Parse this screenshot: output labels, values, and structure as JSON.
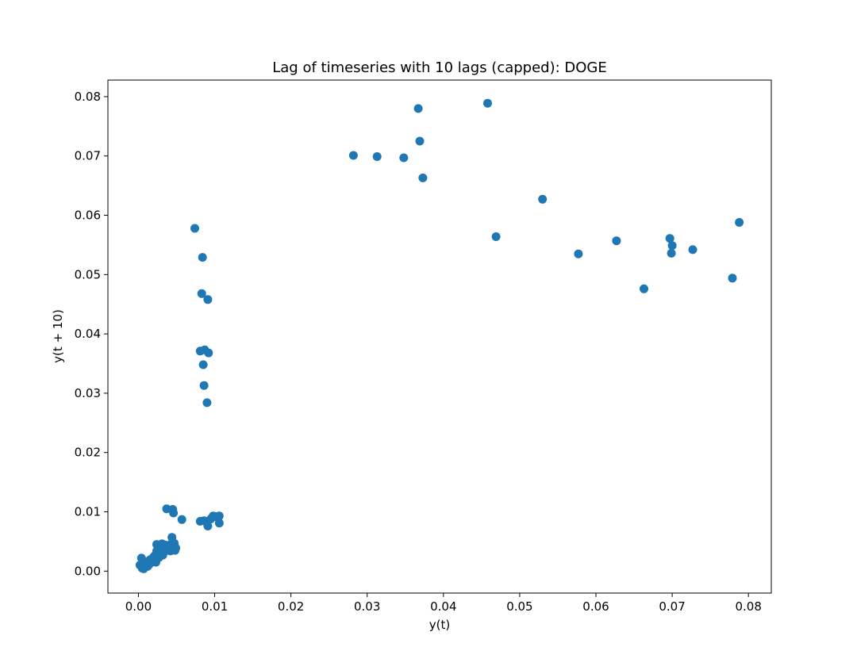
{
  "chart_data": {
    "type": "scatter",
    "title": "Lag of timeseries with 10 lags (capped):  DOGE",
    "xlabel": "y(t)",
    "ylabel": "y(t + 10)",
    "xlim": [
      -0.004,
      0.083
    ],
    "ylim": [
      -0.0037,
      0.0828
    ],
    "xticks": [
      0.0,
      0.01,
      0.02,
      0.03,
      0.04,
      0.05,
      0.06,
      0.07,
      0.08
    ],
    "yticks": [
      0.0,
      0.01,
      0.02,
      0.03,
      0.04,
      0.05,
      0.06,
      0.07,
      0.08
    ],
    "xtick_labels": [
      "0.00",
      "0.01",
      "0.02",
      "0.03",
      "0.04",
      "0.05",
      "0.06",
      "0.07",
      "0.08"
    ],
    "ytick_labels": [
      "0.00",
      "0.01",
      "0.02",
      "0.03",
      "0.04",
      "0.05",
      "0.06",
      "0.07",
      "0.08"
    ],
    "grid": false,
    "marker_color": "#1f77b4",
    "points": [
      [
        0.0282,
        0.0701
      ],
      [
        0.0313,
        0.0699
      ],
      [
        0.0348,
        0.0697
      ],
      [
        0.0367,
        0.078
      ],
      [
        0.0369,
        0.0725
      ],
      [
        0.0373,
        0.0663
      ],
      [
        0.0458,
        0.0789
      ],
      [
        0.0469,
        0.0564
      ],
      [
        0.053,
        0.0627
      ],
      [
        0.0577,
        0.0535
      ],
      [
        0.0627,
        0.0557
      ],
      [
        0.0663,
        0.0476
      ],
      [
        0.0697,
        0.0561
      ],
      [
        0.07,
        0.0549
      ],
      [
        0.0699,
        0.0536
      ],
      [
        0.0727,
        0.0542
      ],
      [
        0.0779,
        0.0494
      ],
      [
        0.0788,
        0.0588
      ],
      [
        0.0074,
        0.0578
      ],
      [
        0.0084,
        0.0529
      ],
      [
        0.0083,
        0.0468
      ],
      [
        0.0091,
        0.0458
      ],
      [
        0.0081,
        0.0371
      ],
      [
        0.0087,
        0.0373
      ],
      [
        0.0092,
        0.0368
      ],
      [
        0.0085,
        0.0348
      ],
      [
        0.0086,
        0.0313
      ],
      [
        0.009,
        0.0284
      ],
      [
        0.0037,
        0.0105
      ],
      [
        0.0045,
        0.0104
      ],
      [
        0.0046,
        0.0098
      ],
      [
        0.0057,
        0.0087
      ],
      [
        0.0081,
        0.0084
      ],
      [
        0.0086,
        0.0085
      ],
      [
        0.0089,
        0.0083
      ],
      [
        0.0091,
        0.0076
      ],
      [
        0.0095,
        0.0088
      ],
      [
        0.0098,
        0.0093
      ],
      [
        0.0101,
        0.0092
      ],
      [
        0.0106,
        0.0093
      ],
      [
        0.0106,
        0.0081
      ],
      [
        0.0002,
        0.001
      ],
      [
        0.0004,
        0.0022
      ],
      [
        0.0005,
        0.0005
      ],
      [
        0.0006,
        0.0012
      ],
      [
        0.0007,
        0.0004
      ],
      [
        0.0008,
        0.0015
      ],
      [
        0.0009,
        0.0007
      ],
      [
        0.001,
        0.0009
      ],
      [
        0.0011,
        0.0012
      ],
      [
        0.0012,
        0.0008
      ],
      [
        0.0013,
        0.0016
      ],
      [
        0.0014,
        0.0011
      ],
      [
        0.0015,
        0.0019
      ],
      [
        0.0016,
        0.0014
      ],
      [
        0.0017,
        0.0017
      ],
      [
        0.0018,
        0.0021
      ],
      [
        0.0019,
        0.0018
      ],
      [
        0.002,
        0.0024
      ],
      [
        0.0021,
        0.002
      ],
      [
        0.0022,
        0.0027
      ],
      [
        0.0023,
        0.0015
      ],
      [
        0.0024,
        0.0034
      ],
      [
        0.0024,
        0.0045
      ],
      [
        0.0025,
        0.0028
      ],
      [
        0.0026,
        0.0038
      ],
      [
        0.0027,
        0.0023
      ],
      [
        0.0028,
        0.0042
      ],
      [
        0.0029,
        0.0031
      ],
      [
        0.003,
        0.0036
      ],
      [
        0.0031,
        0.0046
      ],
      [
        0.0032,
        0.0027
      ],
      [
        0.0033,
        0.0039
      ],
      [
        0.0034,
        0.0033
      ],
      [
        0.0035,
        0.0044
      ],
      [
        0.0036,
        0.0037
      ],
      [
        0.0037,
        0.0041
      ],
      [
        0.0038,
        0.0035
      ],
      [
        0.004,
        0.0043
      ],
      [
        0.0041,
        0.0038
      ],
      [
        0.0042,
        0.0034
      ],
      [
        0.0043,
        0.0046
      ],
      [
        0.0044,
        0.0057
      ],
      [
        0.0045,
        0.0041
      ],
      [
        0.0046,
        0.0036
      ],
      [
        0.0047,
        0.0047
      ],
      [
        0.0048,
        0.0035
      ],
      [
        0.0049,
        0.0039
      ]
    ]
  }
}
